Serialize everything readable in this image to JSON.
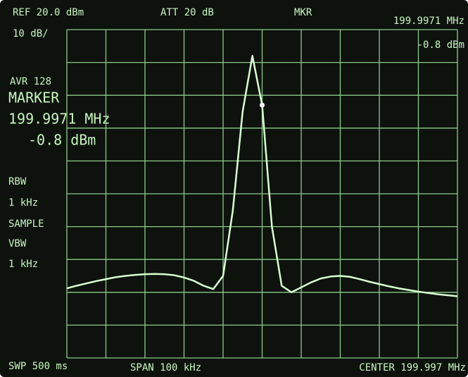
{
  "chart_data": {
    "type": "line",
    "annotations": {
      "ref": "REF  20.0 dBm",
      "att": "ATT 20 dB",
      "mkr": "MKR",
      "mkr_freq": "199.9971 MHz",
      "mkr_amp": "-0.8 dBm",
      "scale": "10 dB/",
      "avg": "AVR  128",
      "marker_title": "MARKER",
      "marker_freq": "199.9971 MHz",
      "marker_amp": "-0.8 dBm",
      "rbw": "RBW",
      "rbw_value": "1 kHz",
      "detector": "SAMPLE",
      "vbw": "VBW",
      "vbw_value": "1 kHz",
      "sweep": "SWP 500 ms",
      "span": "SPAN 100 kHz",
      "center": "CENTER 199.997 MHz"
    },
    "color": "#d8ffd0",
    "values": [
      -58.8,
      -58,
      -57.3,
      -56.6,
      -56,
      -55.4,
      -55,
      -54.7,
      -54.5,
      -54.4,
      -54.5,
      -54.8,
      -55.5,
      -56.5,
      -58,
      -59,
      -55,
      -35,
      -5,
      12,
      -3,
      -40,
      -58,
      -60,
      -58.5,
      -57,
      -55.8,
      -55.2,
      -55,
      -55.3,
      -56,
      -56.8,
      -57.5,
      -58.2,
      -58.8,
      -59.3,
      -59.8,
      -60.2,
      -60.6,
      -60.9,
      -61.2
    ],
    "ylim": [
      -80,
      20
    ],
    "yticks": [
      -80,
      -70,
      -60,
      -50,
      -40,
      -30,
      -20,
      -10,
      0,
      10,
      20
    ],
    "grid": true
  }
}
